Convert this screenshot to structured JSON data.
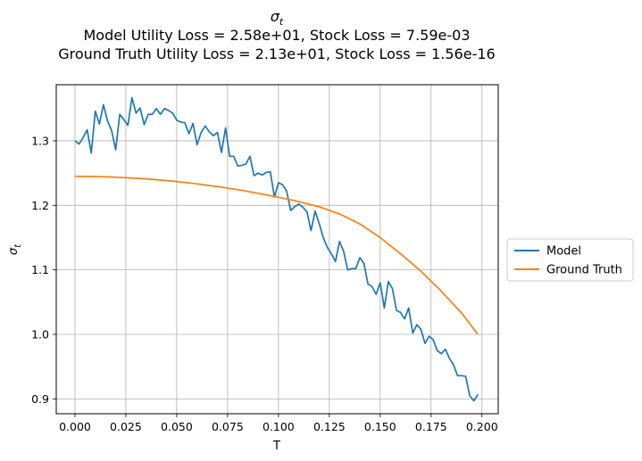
{
  "chart_data": {
    "type": "line",
    "title": {
      "symbol": "σ",
      "subscript": "t",
      "line2": "Model Utility Loss = 2.58e+01, Stock Loss = 7.59e-03",
      "line3": "Ground Truth Utility Loss = 2.13e+01, Stock Loss = 1.56e-16"
    },
    "xlabel": "T",
    "ylabel": {
      "symbol": "σ",
      "subscript": "t"
    },
    "xlim": [
      -0.0092,
      0.208
    ],
    "ylim": [
      0.877,
      1.387
    ],
    "xticks": [
      0.0,
      0.025,
      0.05,
      0.075,
      0.1,
      0.125,
      0.15,
      0.175,
      0.2
    ],
    "xtick_labels": [
      "0.000",
      "0.025",
      "0.050",
      "0.075",
      "0.100",
      "0.125",
      "0.150",
      "0.175",
      "0.200"
    ],
    "yticks": [
      0.9,
      1.0,
      1.1,
      1.2,
      1.3
    ],
    "ytick_labels": [
      "0.9",
      "1.0",
      "1.1",
      "1.2",
      "1.3"
    ],
    "grid": true,
    "legend_position": "outside right, center",
    "series": [
      {
        "name": "Model",
        "color": "#1f77b4",
        "x": [
          0.0,
          0.002,
          0.004,
          0.006,
          0.008,
          0.01,
          0.012,
          0.014,
          0.016,
          0.018,
          0.02,
          0.022,
          0.024,
          0.026,
          0.028,
          0.03,
          0.032,
          0.034,
          0.036,
          0.038,
          0.04,
          0.042,
          0.044,
          0.046,
          0.048,
          0.05,
          0.052,
          0.054,
          0.056,
          0.058,
          0.06,
          0.062,
          0.064,
          0.066,
          0.068,
          0.07,
          0.072,
          0.074,
          0.076,
          0.078,
          0.08,
          0.082,
          0.084,
          0.086,
          0.088,
          0.09,
          0.092,
          0.094,
          0.096,
          0.098,
          0.1,
          0.102,
          0.104,
          0.106,
          0.108,
          0.11,
          0.112,
          0.114,
          0.116,
          0.118,
          0.12,
          0.122,
          0.124,
          0.126,
          0.128,
          0.13,
          0.132,
          0.134,
          0.136,
          0.138,
          0.14,
          0.142,
          0.144,
          0.146,
          0.148,
          0.15,
          0.152,
          0.154,
          0.156,
          0.158,
          0.16,
          0.162,
          0.164,
          0.166,
          0.168,
          0.17,
          0.172,
          0.174,
          0.176,
          0.178,
          0.18,
          0.182,
          0.184,
          0.186,
          0.188,
          0.19,
          0.192,
          0.194,
          0.196,
          0.198
        ],
        "values": [
          1.3,
          1.295,
          1.305,
          1.317,
          1.281,
          1.346,
          1.326,
          1.356,
          1.331,
          1.316,
          1.286,
          1.341,
          1.333,
          1.324,
          1.367,
          1.343,
          1.351,
          1.325,
          1.341,
          1.341,
          1.35,
          1.341,
          1.35,
          1.347,
          1.343,
          1.332,
          1.329,
          1.328,
          1.311,
          1.327,
          1.294,
          1.313,
          1.323,
          1.314,
          1.308,
          1.313,
          1.282,
          1.32,
          1.276,
          1.276,
          1.261,
          1.262,
          1.264,
          1.276,
          1.246,
          1.25,
          1.247,
          1.251,
          1.252,
          1.213,
          1.235,
          1.232,
          1.222,
          1.192,
          1.198,
          1.202,
          1.197,
          1.19,
          1.161,
          1.191,
          1.172,
          1.15,
          1.135,
          1.125,
          1.113,
          1.144,
          1.129,
          1.1,
          1.102,
          1.102,
          1.119,
          1.11,
          1.078,
          1.074,
          1.062,
          1.08,
          1.041,
          1.082,
          1.071,
          1.037,
          1.034,
          1.024,
          1.041,
          1.002,
          1.015,
          1.008,
          0.986,
          0.997,
          0.992,
          0.975,
          0.97,
          0.977,
          0.963,
          0.953,
          0.936,
          0.936,
          0.935,
          0.905,
          0.897,
          0.907
        ]
      },
      {
        "name": "Ground Truth",
        "color": "#ff7f0e",
        "x": [
          0.0,
          0.01,
          0.02,
          0.03,
          0.04,
          0.05,
          0.06,
          0.07,
          0.08,
          0.09,
          0.1,
          0.11,
          0.12,
          0.13,
          0.14,
          0.15,
          0.16,
          0.17,
          0.18,
          0.19,
          0.198
        ],
        "values": [
          1.245,
          1.2447,
          1.2437,
          1.2421,
          1.2398,
          1.2369,
          1.2333,
          1.2291,
          1.2243,
          1.2188,
          1.2126,
          1.2058,
          1.1977,
          1.1867,
          1.1713,
          1.15,
          1.125,
          1.098,
          1.067,
          1.033,
          1.0
        ]
      }
    ]
  }
}
